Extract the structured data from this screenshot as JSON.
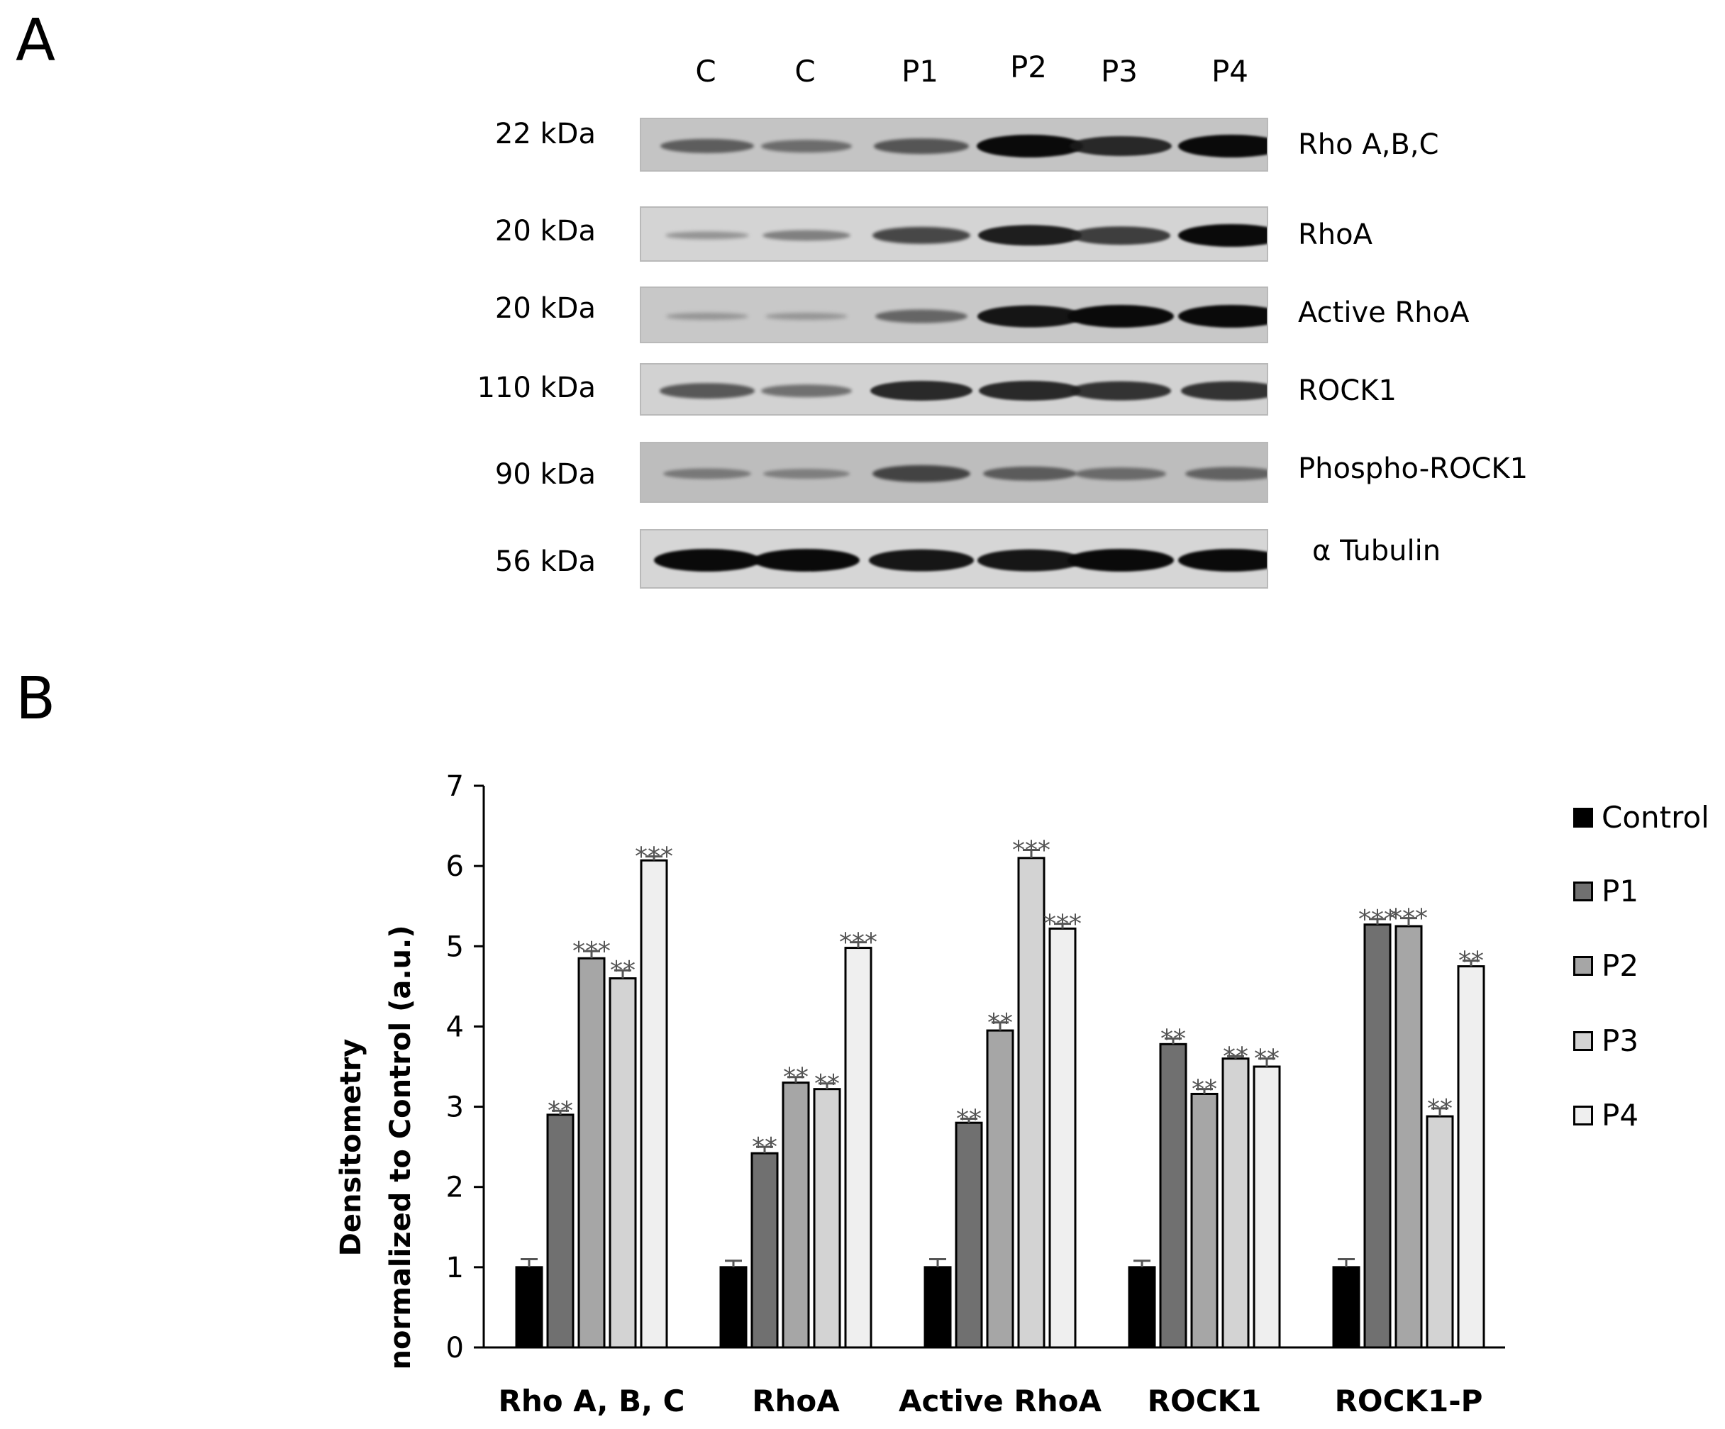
{
  "panels": {
    "a": "A",
    "b": "B"
  },
  "blot": {
    "lanes": [
      "C",
      "C",
      "P1",
      "P2",
      "P3",
      "P4"
    ],
    "rows": [
      {
        "kda": "22 kDa",
        "protein": "Rho A,B,C",
        "bg": "#c4c4c4",
        "intensity": [
          0.55,
          0.45,
          0.6,
          1.0,
          0.85,
          1.0
        ]
      },
      {
        "kda": "20 kDa",
        "protein": "RhoA",
        "bg": "#d4d4d4",
        "intensity": [
          0.2,
          0.35,
          0.7,
          0.9,
          0.75,
          1.0
        ]
      },
      {
        "kda": "20 kDa",
        "protein": "Active RhoA",
        "bg": "#c8c8c8",
        "intensity": [
          0.15,
          0.15,
          0.5,
          0.95,
          1.0,
          1.0
        ]
      },
      {
        "kda": "110 kDa",
        "protein": "ROCK1",
        "bg": "#d2d2d2",
        "intensity": [
          0.6,
          0.45,
          0.85,
          0.85,
          0.8,
          0.8
        ]
      },
      {
        "kda": "90 kDa",
        "protein": "Phospho-ROCK1",
        "bg": "#bdbdbd",
        "intensity": [
          0.35,
          0.3,
          0.7,
          0.55,
          0.45,
          0.5
        ]
      },
      {
        "kda": "56 kDa",
        "protein": "α Tubulin",
        "bg": "#d6d6d6",
        "intensity": [
          1.0,
          1.0,
          0.95,
          0.95,
          1.0,
          1.0
        ]
      }
    ]
  },
  "chart_data": {
    "type": "bar",
    "ylabel_line1": "Densitometry",
    "ylabel_line2": "normalized to Control (a.u.)",
    "ylim": [
      0,
      7
    ],
    "yticks": [
      0,
      1,
      2,
      3,
      4,
      5,
      6,
      7
    ],
    "categories": [
      "Rho A, B, C",
      "RhoA",
      "Active RhoA",
      "ROCK1",
      "ROCK1-P"
    ],
    "legend_position": "right",
    "series": [
      {
        "name": "Control",
        "color": "#000000",
        "values": [
          1.0,
          1.0,
          1.0,
          1.0,
          1.0
        ],
        "errors": [
          0.1,
          0.08,
          0.1,
          0.08,
          0.1
        ],
        "sig": [
          "",
          "",
          "",
          "",
          ""
        ]
      },
      {
        "name": "P1",
        "color": "#707070",
        "values": [
          2.9,
          2.42,
          2.8,
          3.78,
          5.27
        ],
        "errors": [
          0.05,
          0.08,
          0.05,
          0.07,
          0.07
        ],
        "sig": [
          "**",
          "**",
          "**",
          "**",
          "***"
        ]
      },
      {
        "name": "P2",
        "color": "#a6a6a6",
        "values": [
          4.85,
          3.3,
          3.95,
          3.16,
          5.25
        ],
        "errors": [
          0.09,
          0.07,
          0.1,
          0.06,
          0.1
        ],
        "sig": [
          "***",
          "**",
          "**",
          "**",
          "***"
        ]
      },
      {
        "name": "P3",
        "color": "#d3d3d3",
        "values": [
          4.6,
          3.22,
          6.1,
          3.6,
          2.88
        ],
        "errors": [
          0.1,
          0.07,
          0.1,
          0.03,
          0.1
        ],
        "sig": [
          "**",
          "**",
          "***",
          "**",
          "**"
        ]
      },
      {
        "name": "P4",
        "color": "#efefef",
        "values": [
          6.07,
          4.98,
          5.22,
          3.5,
          4.75
        ],
        "errors": [
          0.05,
          0.07,
          0.06,
          0.1,
          0.07
        ],
        "sig": [
          "***",
          "***",
          "***",
          "**",
          "**"
        ]
      }
    ]
  }
}
